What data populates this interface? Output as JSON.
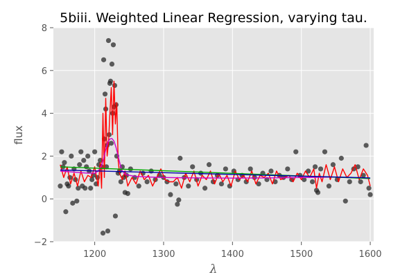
{
  "chart_data": {
    "type": "scatter",
    "title": "5biii. Weighted Linear Regression, varying tau.",
    "xlabel": "λ",
    "ylabel": "flux",
    "xlim": [
      1140,
      1605
    ],
    "ylim": [
      -2,
      8
    ],
    "xticks": [
      1200,
      1300,
      1400,
      1500,
      1600
    ],
    "yticks": [
      -2,
      0,
      2,
      4,
      6,
      8
    ],
    "grid": true,
    "background": "#e5e5e5",
    "scatter_color": "#222222",
    "series": [
      {
        "kind": "points",
        "color": "#222222",
        "x": [
          1150,
          1152,
          1154,
          1156,
          1158,
          1160,
          1162,
          1164,
          1166,
          1168,
          1170,
          1172,
          1174,
          1176,
          1178,
          1180,
          1182,
          1184,
          1186,
          1188,
          1190,
          1192,
          1194,
          1196,
          1198,
          1200,
          1202,
          1204,
          1206,
          1208,
          1210,
          1212,
          1213,
          1214,
          1215,
          1216,
          1217,
          1218,
          1219,
          1220,
          1221,
          1222,
          1223,
          1224,
          1225,
          1226,
          1227,
          1228,
          1229,
          1230,
          1231,
          1232,
          1234,
          1236,
          1238,
          1240,
          1242,
          1244,
          1246,
          1248,
          1252,
          1258,
          1264,
          1270,
          1276,
          1282,
          1288,
          1294,
          1300,
          1305,
          1310,
          1318,
          1320,
          1322,
          1324,
          1330,
          1336,
          1342,
          1348,
          1354,
          1360,
          1366,
          1372,
          1378,
          1384,
          1390,
          1396,
          1402,
          1408,
          1414,
          1420,
          1426,
          1432,
          1438,
          1444,
          1450,
          1456,
          1462,
          1468,
          1474,
          1480,
          1486,
          1492,
          1498,
          1504,
          1510,
          1516,
          1520,
          1522,
          1524,
          1528,
          1534,
          1540,
          1546,
          1552,
          1558,
          1564,
          1570,
          1576,
          1582,
          1586,
          1590,
          1594,
          1598,
          1600
        ],
        "y": [
          0.6,
          2.2,
          1.5,
          1.7,
          -0.6,
          0.7,
          0.6,
          1.0,
          2.0,
          -0.2,
          1.4,
          0.9,
          -0.1,
          0.5,
          1.6,
          2.2,
          0.6,
          1.8,
          0.5,
          1.5,
          2.0,
          1.3,
          0.5,
          0.9,
          1.1,
          2.2,
          0.7,
          1.0,
          1.6,
          1.8,
          1.5,
          -1.6,
          6.5,
          2.8,
          4.9,
          4.2,
          1.5,
          2.5,
          -1.5,
          7.4,
          3.0,
          5.4,
          5.5,
          2.6,
          6.3,
          4.0,
          7.2,
          4.3,
          5.3,
          -0.8,
          4.4,
          2.0,
          1.2,
          1.3,
          0.8,
          1.5,
          1.0,
          0.3,
          1.1,
          0.25,
          1.4,
          1.0,
          0.6,
          1.2,
          0.8,
          1.3,
          0.9,
          1.1,
          1.0,
          0.8,
          0.2,
          0.7,
          -0.25,
          -0.05,
          1.9,
          1.0,
          0.6,
          1.5,
          0.9,
          1.2,
          0.5,
          1.6,
          0.8,
          1.1,
          0.7,
          1.4,
          0.6,
          1.3,
          0.9,
          1.1,
          0.8,
          1.4,
          1.0,
          0.7,
          1.2,
          0.9,
          1.3,
          0.8,
          1.1,
          1.0,
          1.4,
          0.9,
          2.2,
          1.1,
          0.9,
          1.3,
          0.8,
          1.5,
          0.4,
          0.3,
          1.4,
          2.2,
          0.6,
          1.6,
          0.9,
          1.9,
          -0.1,
          0.8,
          1.4,
          1.5,
          0.8,
          1.1,
          2.5,
          0.5,
          0.2
        ]
      },
      {
        "kind": "line",
        "color": "#ff0000",
        "x": [
          1150,
          1155,
          1160,
          1165,
          1170,
          1175,
          1180,
          1185,
          1190,
          1195,
          1200,
          1205,
          1208,
          1210,
          1212,
          1214,
          1216,
          1218,
          1220,
          1222,
          1224,
          1226,
          1228,
          1230,
          1232,
          1234,
          1236,
          1240,
          1244,
          1248,
          1254,
          1260,
          1266,
          1272,
          1278,
          1284,
          1290,
          1296,
          1302,
          1308,
          1314,
          1320,
          1326,
          1332,
          1338,
          1344,
          1350,
          1356,
          1362,
          1368,
          1374,
          1380,
          1386,
          1392,
          1398,
          1404,
          1410,
          1416,
          1422,
          1428,
          1434,
          1440,
          1446,
          1452,
          1458,
          1464,
          1470,
          1476,
          1482,
          1488,
          1494,
          1500,
          1506,
          1512,
          1518,
          1522,
          1526,
          1530,
          1536,
          1542,
          1548,
          1554,
          1560,
          1566,
          1572,
          1578,
          1584,
          1590,
          1596,
          1600
        ],
        "y": [
          1.6,
          1.0,
          1.5,
          0.7,
          1.2,
          0.6,
          1.3,
          0.8,
          1.1,
          1.0,
          1.5,
          0.6,
          1.7,
          0.5,
          4.0,
          1.0,
          4.7,
          2.0,
          2.6,
          4.0,
          5.2,
          3.0,
          5.5,
          3.5,
          4.5,
          1.8,
          1.2,
          0.9,
          1.3,
          0.6,
          1.0,
          0.7,
          1.3,
          0.9,
          1.1,
          0.6,
          1.0,
          1.4,
          0.9,
          0.8,
          0.8,
          1.0,
          0.5,
          1.2,
          0.8,
          1.3,
          0.6,
          1.1,
          0.9,
          1.3,
          0.7,
          1.2,
          0.8,
          1.1,
          0.6,
          1.3,
          0.9,
          1.1,
          0.8,
          1.3,
          0.7,
          1.1,
          1.0,
          1.2,
          0.7,
          1.3,
          0.9,
          1.0,
          1.1,
          0.8,
          1.2,
          0.9,
          1.3,
          1.0,
          1.4,
          0.5,
          1.2,
          0.8,
          1.6,
          0.9,
          1.5,
          0.8,
          1.4,
          1.0,
          1.2,
          1.6,
          0.9,
          1.4,
          1.1,
          0.6
        ]
      },
      {
        "kind": "line",
        "color": "#cc00cc",
        "x": [
          1150,
          1170,
          1190,
          1200,
          1205,
          1210,
          1213,
          1216,
          1219,
          1222,
          1225,
          1228,
          1231,
          1234,
          1237,
          1240,
          1245,
          1250,
          1260,
          1280,
          1300,
          1350,
          1400,
          1450,
          1500,
          1550,
          1600
        ],
        "y": [
          1.3,
          1.25,
          1.2,
          1.2,
          1.3,
          1.55,
          1.9,
          2.3,
          2.65,
          2.8,
          2.82,
          2.7,
          2.4,
          2.0,
          1.6,
          1.3,
          1.15,
          1.1,
          1.05,
          1.02,
          1.0,
          0.98,
          0.97,
          0.98,
          1.0,
          1.02,
          0.95
        ]
      },
      {
        "kind": "line",
        "color": "#00aa00",
        "x": [
          1150,
          1600
        ],
        "y": [
          1.5,
          0.95
        ]
      },
      {
        "kind": "line",
        "color": "#0000aa",
        "x": [
          1150,
          1600
        ],
        "y": [
          1.35,
          0.98
        ]
      }
    ]
  }
}
